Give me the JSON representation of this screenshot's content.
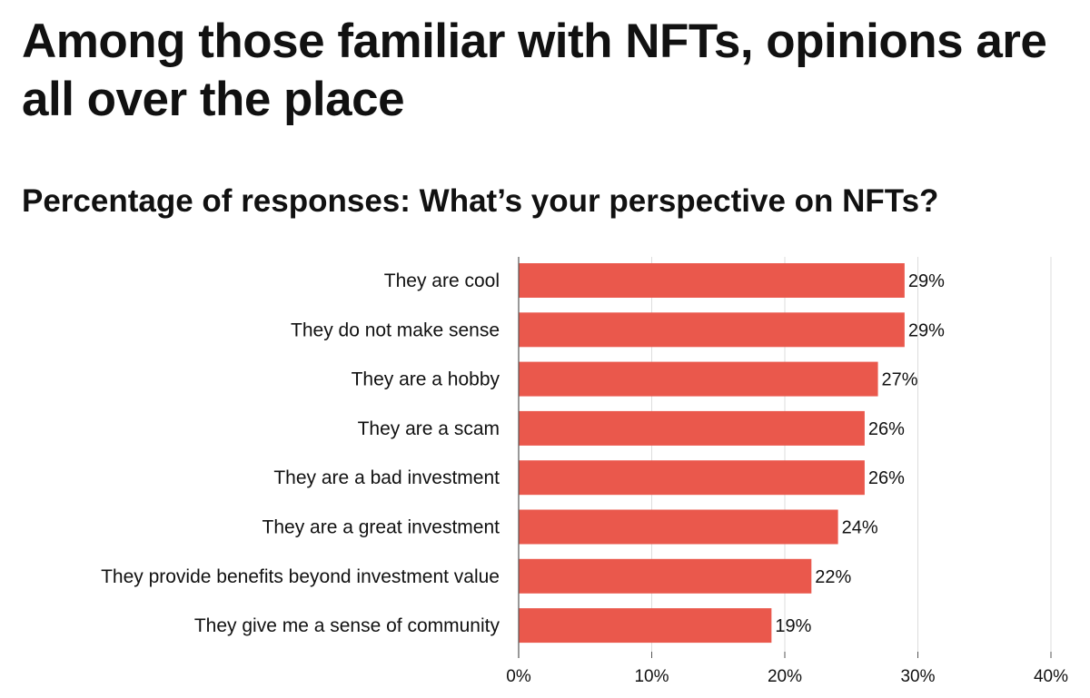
{
  "chart_data": {
    "type": "bar",
    "orientation": "horizontal",
    "title": "Among those familiar with NFTs, opinions are all over the place",
    "subtitle": "Percentage of responses: What’s your perspective on NFTs?",
    "categories": [
      "They are cool",
      "They do not make sense",
      "They are a hobby",
      "They are a scam",
      "They are a bad investment",
      "They are a great investment",
      "They provide benefits beyond investment value",
      "They give me a sense of community"
    ],
    "values": [
      29,
      29,
      27,
      26,
      26,
      24,
      22,
      19
    ],
    "value_labels": [
      "29%",
      "29%",
      "27%",
      "26%",
      "26%",
      "24%",
      "22%",
      "19%"
    ],
    "xlim": [
      0,
      40
    ],
    "xticks": [
      0,
      10,
      20,
      30,
      40
    ],
    "xtick_labels": [
      "0%",
      "10%",
      "20%",
      "30%",
      "40%"
    ],
    "grid": "vertical",
    "bar_color": "#EA584C",
    "grid_color": "#DDDDDD",
    "axis_color": "#555555"
  }
}
